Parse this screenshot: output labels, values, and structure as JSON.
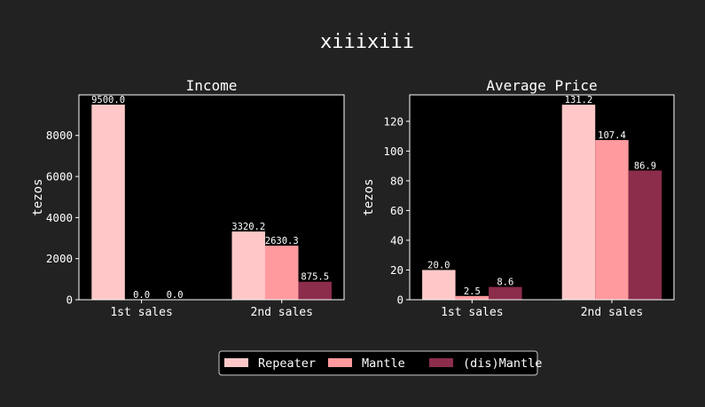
{
  "figure": {
    "title": "xiiixiii",
    "background": "#222222",
    "plot_background": "#000000",
    "text_color": "#ffffff"
  },
  "legend": {
    "placement": "bottom-center",
    "entries": [
      {
        "label": "Repeater",
        "color": "#ffc8c8"
      },
      {
        "label": "Mantle",
        "color": "#ff9a9e"
      },
      {
        "label": "(dis)Mantle",
        "color": "#8b2d4b"
      }
    ]
  },
  "chart_data": [
    {
      "type": "bar",
      "title": "Income",
      "xlabel": "",
      "ylabel": "tezos",
      "categories": [
        "1st sales",
        "2nd sales"
      ],
      "ylim": [
        0,
        9975
      ],
      "yticks": [
        0,
        2000,
        4000,
        6000,
        8000
      ],
      "grid": false,
      "series": [
        {
          "name": "Repeater",
          "color": "#ffc8c8",
          "values": [
            9500.0,
            3320.2
          ],
          "labels": [
            "9500.0",
            "3320.2"
          ]
        },
        {
          "name": "Mantle",
          "color": "#ff9a9e",
          "values": [
            0.0,
            2630.3
          ],
          "labels": [
            "0.0",
            "2630.3"
          ]
        },
        {
          "name": "(dis)Mantle",
          "color": "#8b2d4b",
          "values": [
            0.0,
            875.5
          ],
          "labels": [
            "0.0",
            "875.5"
          ]
        }
      ]
    },
    {
      "type": "bar",
      "title": "Average Price",
      "xlabel": "",
      "ylabel": "tezos",
      "categories": [
        "1st sales",
        "2nd sales"
      ],
      "ylim": [
        0,
        137.8
      ],
      "yticks": [
        0,
        20,
        40,
        60,
        80,
        100,
        120
      ],
      "grid": false,
      "series": [
        {
          "name": "Repeater",
          "color": "#ffc8c8",
          "values": [
            20.0,
            131.2
          ],
          "labels": [
            "20.0",
            "131.2"
          ]
        },
        {
          "name": "Mantle",
          "color": "#ff9a9e",
          "values": [
            2.5,
            107.4
          ],
          "labels": [
            "2.5",
            "107.4"
          ]
        },
        {
          "name": "(dis)Mantle",
          "color": "#8b2d4b",
          "values": [
            8.6,
            86.9
          ],
          "labels": [
            "8.6",
            "86.9"
          ]
        }
      ]
    }
  ]
}
